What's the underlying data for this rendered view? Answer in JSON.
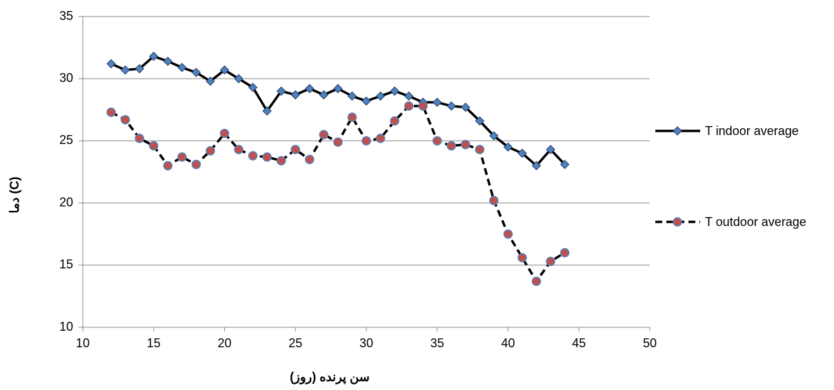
{
  "chart_data": {
    "type": "line",
    "x_label": "سن پرنده (روز)",
    "y_label": "دما (C)",
    "x": [
      12,
      13,
      14,
      15,
      16,
      17,
      18,
      19,
      20,
      21,
      22,
      23,
      24,
      25,
      26,
      27,
      28,
      29,
      30,
      31,
      32,
      33,
      34,
      35,
      36,
      37,
      38,
      39,
      40,
      41,
      42,
      43,
      44
    ],
    "series": [
      {
        "name": "T indoor average",
        "color": "#000000",
        "marker_color": "#4f81bd",
        "dash": false,
        "marker": "diamond",
        "values": [
          31.2,
          30.7,
          30.8,
          31.8,
          31.4,
          30.9,
          30.5,
          29.8,
          30.7,
          30.0,
          29.3,
          27.4,
          29.0,
          28.7,
          29.2,
          28.7,
          29.2,
          28.6,
          28.2,
          28.6,
          29.0,
          28.6,
          28.1,
          28.1,
          27.8,
          27.7,
          26.6,
          25.4,
          24.5,
          24.0,
          23.0,
          24.3,
          23.1
        ]
      },
      {
        "name": "T outdoor average",
        "color": "#000000",
        "marker_color": "#c0504d",
        "dash": true,
        "marker": "circle",
        "values": [
          27.3,
          26.7,
          25.2,
          24.6,
          23.0,
          23.7,
          23.1,
          24.2,
          25.6,
          24.3,
          23.8,
          23.7,
          23.4,
          24.3,
          23.5,
          25.5,
          24.9,
          26.9,
          25.0,
          25.2,
          26.6,
          27.8,
          27.8,
          25.0,
          24.6,
          24.7,
          24.3,
          20.2,
          17.5,
          15.6,
          13.7,
          15.3,
          16.0
        ]
      }
    ],
    "xlim": [
      10,
      50
    ],
    "xticks": [
      10,
      15,
      20,
      25,
      30,
      35,
      40,
      45,
      50
    ],
    "ylim": [
      10,
      35
    ],
    "yticks": [
      10,
      15,
      20,
      25,
      30,
      35
    ],
    "grid": true,
    "legend": "right"
  }
}
